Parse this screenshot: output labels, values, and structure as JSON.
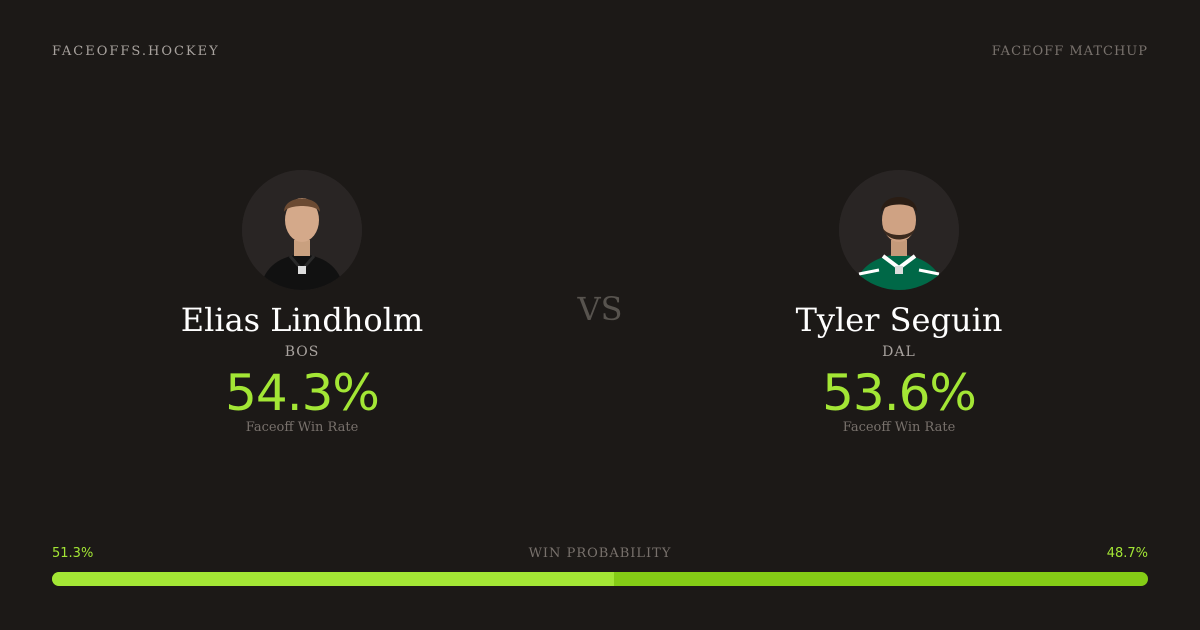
{
  "brand": "FACEOFFS.HOCKEY",
  "page_label": "FACEOFF MATCHUP",
  "vs_label": "VS",
  "players": [
    {
      "name": "Elias Lindholm",
      "team": "BOS",
      "win_rate": "54.3%",
      "win_rate_label": "Faceoff Win Rate",
      "jersey_color": "#111111"
    },
    {
      "name": "Tyler Seguin",
      "team": "DAL",
      "win_rate": "53.6%",
      "win_rate_label": "Faceoff Win Rate",
      "jersey_color": "#006847"
    }
  ],
  "win_probability": {
    "label": "WIN PROBABILITY",
    "left_pct_text": "51.3%",
    "right_pct_text": "48.7%",
    "left_fraction": 0.513
  },
  "colors": {
    "accent": "#a3e635",
    "background": "#1c1917"
  }
}
